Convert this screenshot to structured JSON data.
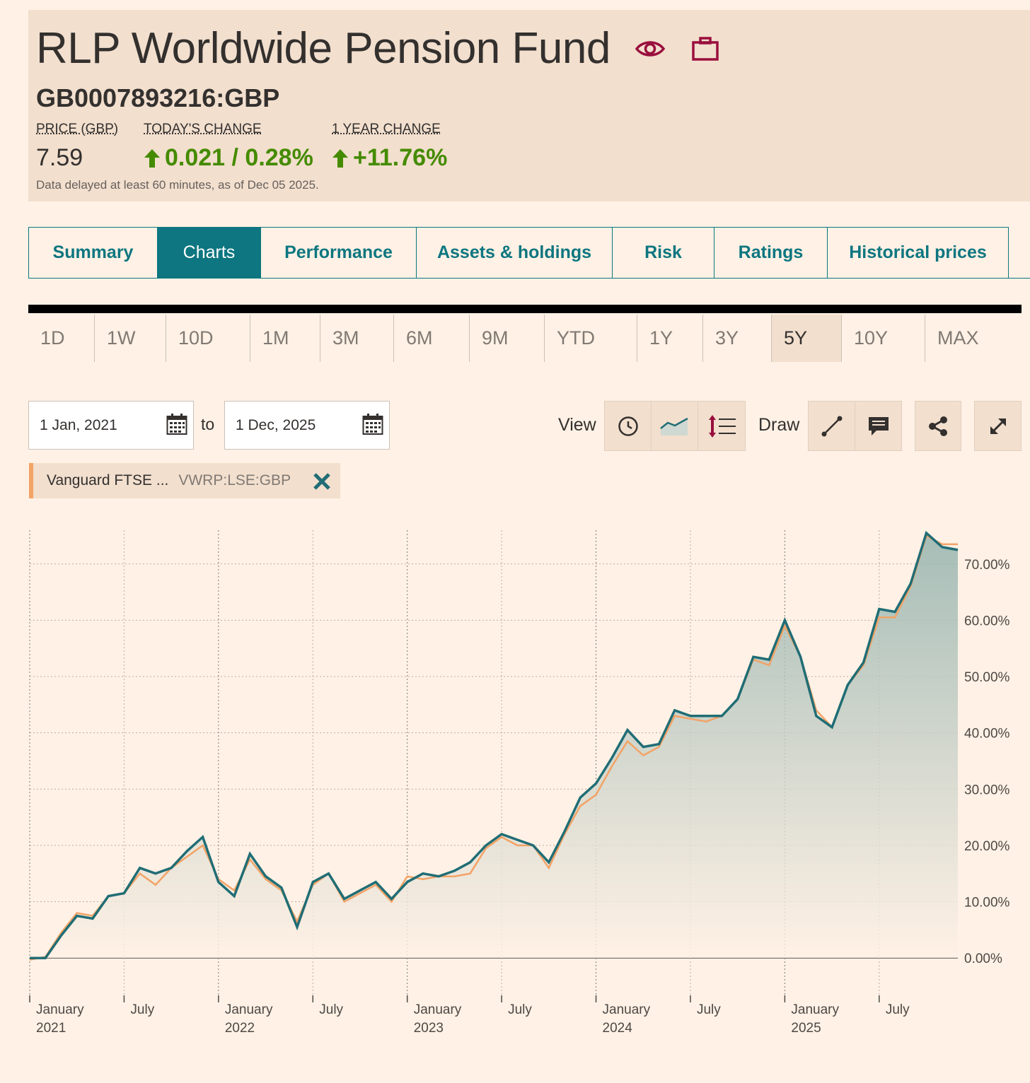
{
  "fund": {
    "name": "RLP Worldwide Pension Fund",
    "symbol": "GB0007893216:GBP",
    "price_label": "PRICE (GBP)",
    "price_value": "7.59",
    "today_change_label": "TODAY'S CHANGE",
    "today_change_value": "0.021 / 0.28%",
    "year_change_label": "1 YEAR CHANGE",
    "year_change_value": "+11.76%",
    "disclaimer": "Data delayed at least 60 minutes, as of Dec 05 2025.",
    "icons": [
      "eye-icon",
      "briefcase-icon"
    ]
  },
  "tabs": [
    {
      "label": "Summary",
      "active": false
    },
    {
      "label": "Charts",
      "active": true
    },
    {
      "label": "Performance",
      "active": false
    },
    {
      "label": "Assets & holdings",
      "active": false
    },
    {
      "label": "Risk",
      "active": false
    },
    {
      "label": "Ratings",
      "active": false
    },
    {
      "label": "Historical prices",
      "active": false
    }
  ],
  "periods": [
    "1D",
    "1W",
    "10D",
    "1M",
    "3M",
    "6M",
    "9M",
    "YTD",
    "1Y",
    "3Y",
    "5Y",
    "10Y",
    "MAX"
  ],
  "active_period": "5Y",
  "controls": {
    "from_date": "1 Jan, 2021",
    "to_label": "to",
    "to_date": "1 Dec, 2025",
    "view_label": "View",
    "draw_label": "Draw"
  },
  "comparison": {
    "name": "Vanguard FTSE ...",
    "symbol": "VWRP:LSE:GBP",
    "color": "#f2a366"
  },
  "colors": {
    "fund_line": "#206d75",
    "comparison_line": "#f2a366",
    "accent": "#0d7680",
    "up": "#458b00",
    "icon_red": "#990f3d"
  },
  "chart_data": {
    "type": "area",
    "y_ticks": [
      "0.00%",
      "10.00%",
      "20.00%",
      "30.00%",
      "40.00%",
      "50.00%",
      "60.00%",
      "70.00%"
    ],
    "ylim": [
      -5,
      76
    ],
    "x_labels": [
      {
        "month": "January",
        "year": "2021"
      },
      {
        "month": "July",
        "year": ""
      },
      {
        "month": "January",
        "year": "2022"
      },
      {
        "month": "July",
        "year": ""
      },
      {
        "month": "January",
        "year": "2023"
      },
      {
        "month": "July",
        "year": ""
      },
      {
        "month": "January",
        "year": "2024"
      },
      {
        "month": "July",
        "year": ""
      },
      {
        "month": "January",
        "year": "2025"
      },
      {
        "month": "July",
        "year": ""
      }
    ],
    "series": [
      {
        "name": "RLP Worldwide Pension Fund",
        "values": [
          0,
          0,
          4,
          7.5,
          7,
          11,
          11.5,
          16,
          15,
          16,
          19,
          21.5,
          13.5,
          11,
          18.5,
          14.5,
          12.5,
          5.5,
          13.5,
          15,
          10.5,
          12,
          13.5,
          10.5,
          13.5,
          15,
          14.5,
          15.5,
          17,
          20,
          22,
          21,
          20,
          17,
          22.5,
          28.5,
          31,
          35.5,
          40.5,
          37.5,
          38,
          44,
          43,
          43,
          43,
          46,
          53.5,
          53,
          60,
          53.5,
          43,
          41,
          48.5,
          52.5,
          62,
          61.5,
          66.5,
          75.5,
          73,
          72.5
        ]
      },
      {
        "name": "Vanguard FTSE ...",
        "values": [
          -0.3,
          0.2,
          4.5,
          8,
          7.5,
          11,
          11.5,
          15,
          13,
          16,
          18,
          20,
          14,
          12,
          17.5,
          14,
          12,
          6.5,
          13,
          15,
          10,
          11.5,
          13,
          10,
          14.5,
          14,
          14.5,
          14.5,
          15,
          19.5,
          21.5,
          20,
          20,
          16,
          22,
          27,
          29,
          34,
          38.5,
          36,
          37.5,
          43,
          42.5,
          42,
          43,
          46,
          53,
          52,
          59,
          53.5,
          44,
          41,
          48.5,
          52,
          60.5,
          60.5,
          66,
          75,
          73.5,
          73.5
        ]
      }
    ]
  }
}
